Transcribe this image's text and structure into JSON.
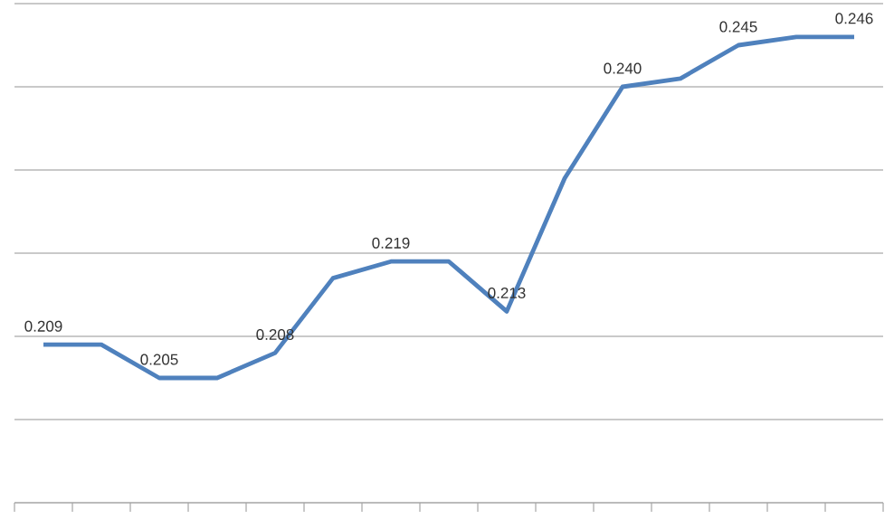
{
  "chart_data": {
    "type": "line",
    "categories": [
      null,
      null,
      null,
      null,
      null,
      null,
      null,
      null,
      null,
      null,
      null,
      null,
      null,
      null,
      null
    ],
    "series": [
      {
        "color": "#4f81bd",
        "values": [
          0.209,
          0.209,
          0.205,
          0.205,
          0.208,
          0.217,
          0.219,
          0.219,
          0.213,
          0.229,
          0.24,
          0.241,
          0.245,
          0.246,
          0.246
        ],
        "value_labels": [
          "0.209",
          null,
          "0.205",
          null,
          "0.208",
          null,
          "0.219",
          null,
          "0.213",
          null,
          "0.240",
          null,
          "0.245",
          null,
          "0.246"
        ]
      }
    ],
    "ylim": [
      0.19,
      0.25
    ],
    "yticks": [
      {
        "value": 0.19,
        "label": null
      },
      {
        "value": 0.2,
        "label": null
      },
      {
        "value": 0.21,
        "label": null
      },
      {
        "value": 0.22,
        "label": null
      },
      {
        "value": 0.23,
        "label": null
      },
      {
        "value": 0.24,
        "label": null
      },
      {
        "value": 0.25,
        "label": null
      }
    ],
    "grid": "y"
  }
}
